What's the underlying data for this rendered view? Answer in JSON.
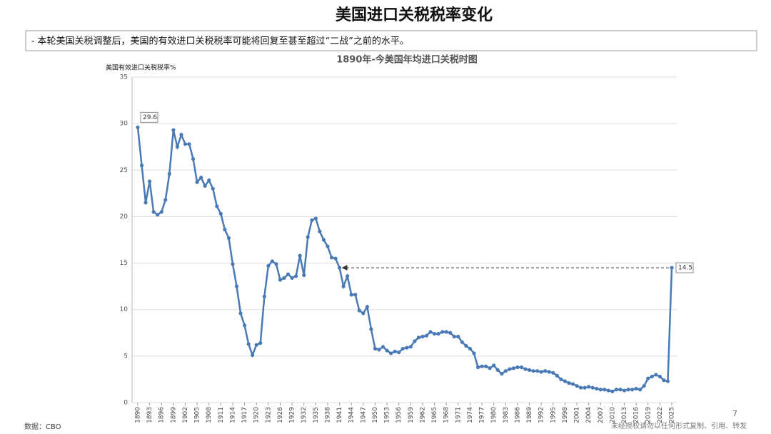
{
  "header": {
    "title": "美国进口关税税率变化",
    "summary": "- 本轮美国关税调整后，美国的有效进口关税税率可能将回复至甚至超过“二战”之前的水平。"
  },
  "chart_data": {
    "type": "line",
    "title": "1890年-今美国年均进口关税时图",
    "y_label": "美国有效进口关税税率%",
    "x": [
      1890,
      1891,
      1892,
      1893,
      1894,
      1895,
      1896,
      1897,
      1898,
      1899,
      1900,
      1901,
      1902,
      1903,
      1904,
      1905,
      1906,
      1907,
      1908,
      1909,
      1910,
      1911,
      1912,
      1913,
      1914,
      1915,
      1916,
      1917,
      1918,
      1919,
      1920,
      1921,
      1922,
      1923,
      1924,
      1925,
      1926,
      1927,
      1928,
      1929,
      1930,
      1931,
      1932,
      1933,
      1934,
      1935,
      1936,
      1937,
      1938,
      1939,
      1940,
      1941,
      1942,
      1943,
      1944,
      1945,
      1946,
      1947,
      1948,
      1949,
      1950,
      1951,
      1952,
      1953,
      1954,
      1955,
      1956,
      1957,
      1958,
      1959,
      1960,
      1961,
      1962,
      1963,
      1964,
      1965,
      1966,
      1967,
      1968,
      1969,
      1970,
      1971,
      1972,
      1973,
      1974,
      1975,
      1976,
      1977,
      1978,
      1979,
      1980,
      1981,
      1982,
      1983,
      1984,
      1985,
      1986,
      1987,
      1988,
      1989,
      1990,
      1991,
      1992,
      1993,
      1994,
      1995,
      1996,
      1997,
      1998,
      1999,
      2000,
      2001,
      2002,
      2003,
      2004,
      2005,
      2006,
      2007,
      2008,
      2009,
      2010,
      2011,
      2012,
      2013,
      2014,
      2015,
      2016,
      2017,
      2018,
      2019,
      2020,
      2021,
      2022,
      2023,
      2024,
      2025
    ],
    "series": [
      {
        "name": "美国有效进口关税税率",
        "color": "#4a7ab5",
        "values": [
          29.6,
          25.5,
          21.5,
          23.8,
          20.5,
          20.2,
          20.5,
          21.8,
          24.6,
          29.3,
          27.5,
          28.8,
          27.8,
          27.8,
          26.2,
          23.7,
          24.2,
          23.3,
          23.9,
          23.0,
          21.1,
          20.3,
          18.6,
          17.7,
          14.9,
          12.5,
          9.6,
          8.3,
          6.3,
          5.1,
          6.2,
          6.4,
          11.4,
          14.7,
          15.2,
          14.9,
          13.2,
          13.4,
          13.8,
          13.4,
          13.6,
          15.8,
          13.7,
          17.8,
          19.6,
          19.8,
          18.4,
          17.5,
          16.8,
          15.6,
          15.5,
          14.5,
          12.5,
          13.6,
          11.6,
          11.6,
          9.9,
          9.6,
          10.3,
          7.9,
          5.8,
          5.7,
          6.0,
          5.6,
          5.3,
          5.5,
          5.4,
          5.8,
          5.9,
          6.0,
          6.6,
          7.0,
          7.1,
          7.2,
          7.6,
          7.4,
          7.4,
          7.6,
          7.6,
          7.5,
          7.1,
          7.1,
          6.5,
          6.1,
          5.8,
          5.3,
          3.8,
          3.9,
          3.9,
          3.7,
          4.0,
          3.5,
          3.1,
          3.4,
          3.6,
          3.7,
          3.8,
          3.8,
          3.6,
          3.5,
          3.4,
          3.4,
          3.3,
          3.4,
          3.3,
          3.2,
          2.9,
          2.5,
          2.3,
          2.1,
          2.0,
          1.8,
          1.6,
          1.6,
          1.7,
          1.6,
          1.5,
          1.4,
          1.4,
          1.3,
          1.2,
          1.4,
          1.4,
          1.3,
          1.4,
          1.4,
          1.5,
          1.4,
          1.8,
          2.6,
          2.8,
          3.0,
          2.8,
          2.4,
          2.3,
          14.5
        ]
      }
    ],
    "xlim": [
      1890,
      2025
    ],
    "xticks": [
      1890,
      1893,
      1896,
      1899,
      1902,
      1905,
      1908,
      1911,
      1914,
      1917,
      1920,
      1923,
      1926,
      1929,
      1932,
      1935,
      1938,
      1941,
      1944,
      1947,
      1950,
      1953,
      1956,
      1959,
      1962,
      1965,
      1968,
      1971,
      1974,
      1977,
      1980,
      1983,
      1986,
      1989,
      1992,
      1995,
      1998,
      2001,
      2004,
      2007,
      2010,
      2013,
      2016,
      2019,
      2022,
      2025
    ],
    "ylim": [
      0,
      35
    ],
    "yticks": [
      0,
      5,
      10,
      15,
      20,
      25,
      30,
      35
    ],
    "grid": true
  },
  "footer": {
    "source": "数据：CBO",
    "page": "7",
    "notice": "未经授权请勿以任何形式复制、引用、转发"
  }
}
